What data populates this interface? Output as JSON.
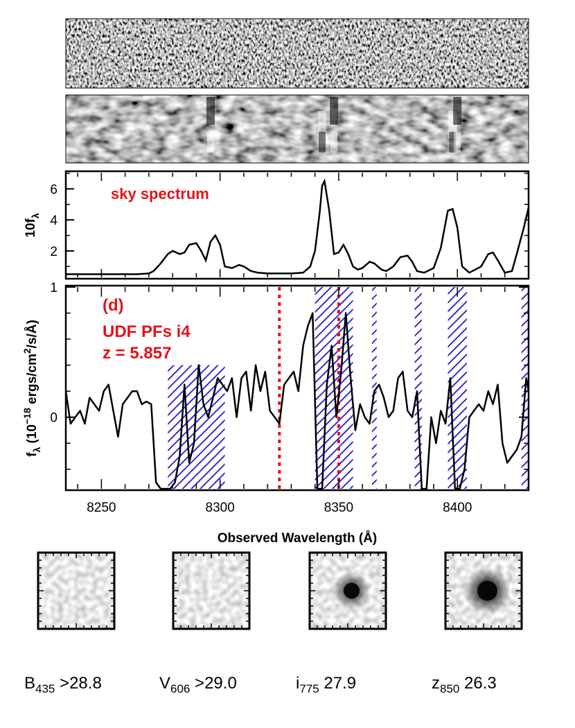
{
  "chart_data": [
    {
      "type": "image",
      "panel": "2D spectrum (raw)"
    },
    {
      "type": "image",
      "panel": "2D spectrum (smoothed)"
    },
    {
      "type": "line",
      "panel": "sky spectrum",
      "annotation": "sky spectrum",
      "ylabel_main": "10f",
      "ylabel_sub": "λ",
      "xlim": [
        8235,
        8430
      ],
      "ylim": [
        0.3,
        7.0
      ],
      "yticks": [
        2,
        4,
        6
      ],
      "x": [
        8235,
        8240,
        8245,
        8250,
        8255,
        8260,
        8265,
        8270,
        8272,
        8275,
        8278,
        8280,
        8283,
        8285,
        8287,
        8290,
        8292,
        8294,
        8296,
        8298,
        8300,
        8302,
        8305,
        8308,
        8310,
        8313,
        8316,
        8320,
        8325,
        8330,
        8335,
        8338,
        8340,
        8342,
        8343,
        8344,
        8346,
        8348,
        8350,
        8352,
        8354,
        8356,
        8358,
        8360,
        8363,
        8365,
        8368,
        8370,
        8373,
        8376,
        8379,
        8381,
        8383,
        8386,
        8390,
        8393,
        8396,
        8398,
        8400,
        8402,
        8405,
        8410,
        8413,
        8415,
        8417,
        8420,
        8423,
        8425,
        8428,
        8430
      ],
      "y": [
        0.5,
        0.5,
        0.5,
        0.5,
        0.5,
        0.5,
        0.5,
        0.55,
        0.7,
        1.2,
        1.8,
        2.0,
        1.8,
        1.9,
        2.4,
        2.5,
        2.0,
        1.4,
        2.6,
        3.0,
        2.4,
        1.0,
        0.9,
        1.1,
        1.0,
        0.7,
        0.6,
        0.55,
        0.55,
        0.55,
        0.6,
        1.0,
        2.0,
        4.5,
        6.2,
        6.5,
        4.6,
        1.8,
        1.9,
        2.4,
        1.8,
        1.0,
        0.8,
        0.9,
        1.3,
        1.2,
        0.8,
        0.7,
        1.0,
        1.6,
        1.7,
        1.3,
        0.7,
        0.6,
        0.9,
        2.2,
        4.6,
        4.7,
        3.5,
        1.0,
        0.6,
        1.0,
        1.8,
        1.9,
        1.4,
        0.6,
        0.7,
        1.8,
        3.5,
        4.8
      ]
    },
    {
      "type": "line",
      "panel": "object spectrum",
      "label_panel": "(d)",
      "label_name": "UDF PFs i4",
      "label_z": "z = 5.857",
      "xlabel": "Observed Wavelength (Å)",
      "ylabel_f": "f",
      "ylabel_f_sub": "λ",
      "ylabel_unit_pre": "(10",
      "ylabel_exp": "−18",
      "ylabel_unit_mid": " ergs/cm",
      "ylabel_sq": "2",
      "ylabel_unit_post": "/s/Å)",
      "xlim": [
        8235,
        8430
      ],
      "ylim": [
        -0.55,
        1.0
      ],
      "xticks": [
        "8250",
        "8300",
        "8350",
        "8400"
      ],
      "xtick_values": [
        8250,
        8300,
        8350,
        8400
      ],
      "yticks": [
        "0",
        "1"
      ],
      "ytick_values": [
        0,
        1
      ],
      "red_dashed_lines": [
        8325,
        8350
      ],
      "hatched_regions": [
        [
          8278,
          8302
        ],
        [
          8340,
          8356
        ],
        [
          8364,
          8366
        ],
        [
          8382,
          8385
        ],
        [
          8396,
          8404
        ],
        [
          8427,
          8430
        ]
      ],
      "x": [
        8235,
        8237,
        8239,
        8241,
        8243,
        8245,
        8247,
        8249,
        8251,
        8253,
        8255,
        8257,
        8259,
        8261,
        8263,
        8265,
        8267,
        8269,
        8271,
        8273,
        8275,
        8277,
        8279,
        8281,
        8283,
        8285,
        8287,
        8289,
        8291,
        8293,
        8295,
        8297,
        8299,
        8301,
        8303,
        8305,
        8307,
        8309,
        8311,
        8313,
        8315,
        8317,
        8319,
        8321,
        8323,
        8325,
        8327,
        8329,
        8331,
        8333,
        8335,
        8337,
        8339,
        8341,
        8343,
        8345,
        8347,
        8349,
        8351,
        8353,
        8355,
        8357,
        8359,
        8361,
        8363,
        8365,
        8367,
        8369,
        8371,
        8373,
        8375,
        8377,
        8379,
        8381,
        8383,
        8385,
        8387,
        8389,
        8391,
        8393,
        8395,
        8397,
        8399,
        8401,
        8403,
        8405,
        8407,
        8409,
        8411,
        8413,
        8415,
        8417,
        8419,
        8421,
        8423,
        8425,
        8427,
        8429,
        8430
      ],
      "y": [
        0.2,
        -0.05,
        0.0,
        0.05,
        -0.05,
        0.15,
        0.1,
        0.05,
        0.2,
        0.25,
        0.05,
        -0.15,
        0.1,
        0.15,
        0.2,
        0.2,
        0.1,
        0.12,
        0.1,
        -0.5,
        -0.55,
        -0.55,
        -0.55,
        -0.5,
        -0.3,
        0.25,
        -0.35,
        -0.2,
        0.4,
        0.1,
        0.0,
        0.15,
        0.3,
        0.25,
        0.2,
        0.3,
        0.0,
        0.3,
        0.35,
        0.05,
        0.4,
        0.2,
        0.35,
        0.05,
        0.0,
        -0.05,
        0.25,
        0.3,
        0.35,
        0.2,
        0.55,
        0.7,
        0.8,
        -0.55,
        -0.55,
        0.25,
        0.55,
        0.0,
        0.35,
        0.8,
        0.3,
        -0.1,
        0.1,
        0.0,
        -0.05,
        0.2,
        0.25,
        0.15,
        0.0,
        0.05,
        0.3,
        0.35,
        0.05,
        0.0,
        0.2,
        -0.55,
        -0.55,
        0.0,
        -0.2,
        0.05,
        -0.05,
        0.3,
        -0.55,
        -0.55,
        -0.4,
        0.0,
        0.05,
        0.1,
        0.05,
        0.2,
        0.1,
        0.25,
        -0.2,
        -0.35,
        -0.3,
        -0.25,
        -0.15,
        0.3,
        0.2
      ]
    }
  ],
  "stamps": [
    {
      "band": "B",
      "sub": "435",
      "value": ">28.8",
      "source": 0.0
    },
    {
      "band": "V",
      "sub": "606",
      "value": ">29.0",
      "source": 0.0
    },
    {
      "band": "i",
      "sub": "775",
      "value": "27.9",
      "source": 0.7
    },
    {
      "band": "z",
      "sub": "850",
      "value": "26.3",
      "source": 1.0
    }
  ],
  "colors": {
    "annotation": "#e3121b",
    "hatch": "#1f12c9",
    "line": "#000000"
  }
}
